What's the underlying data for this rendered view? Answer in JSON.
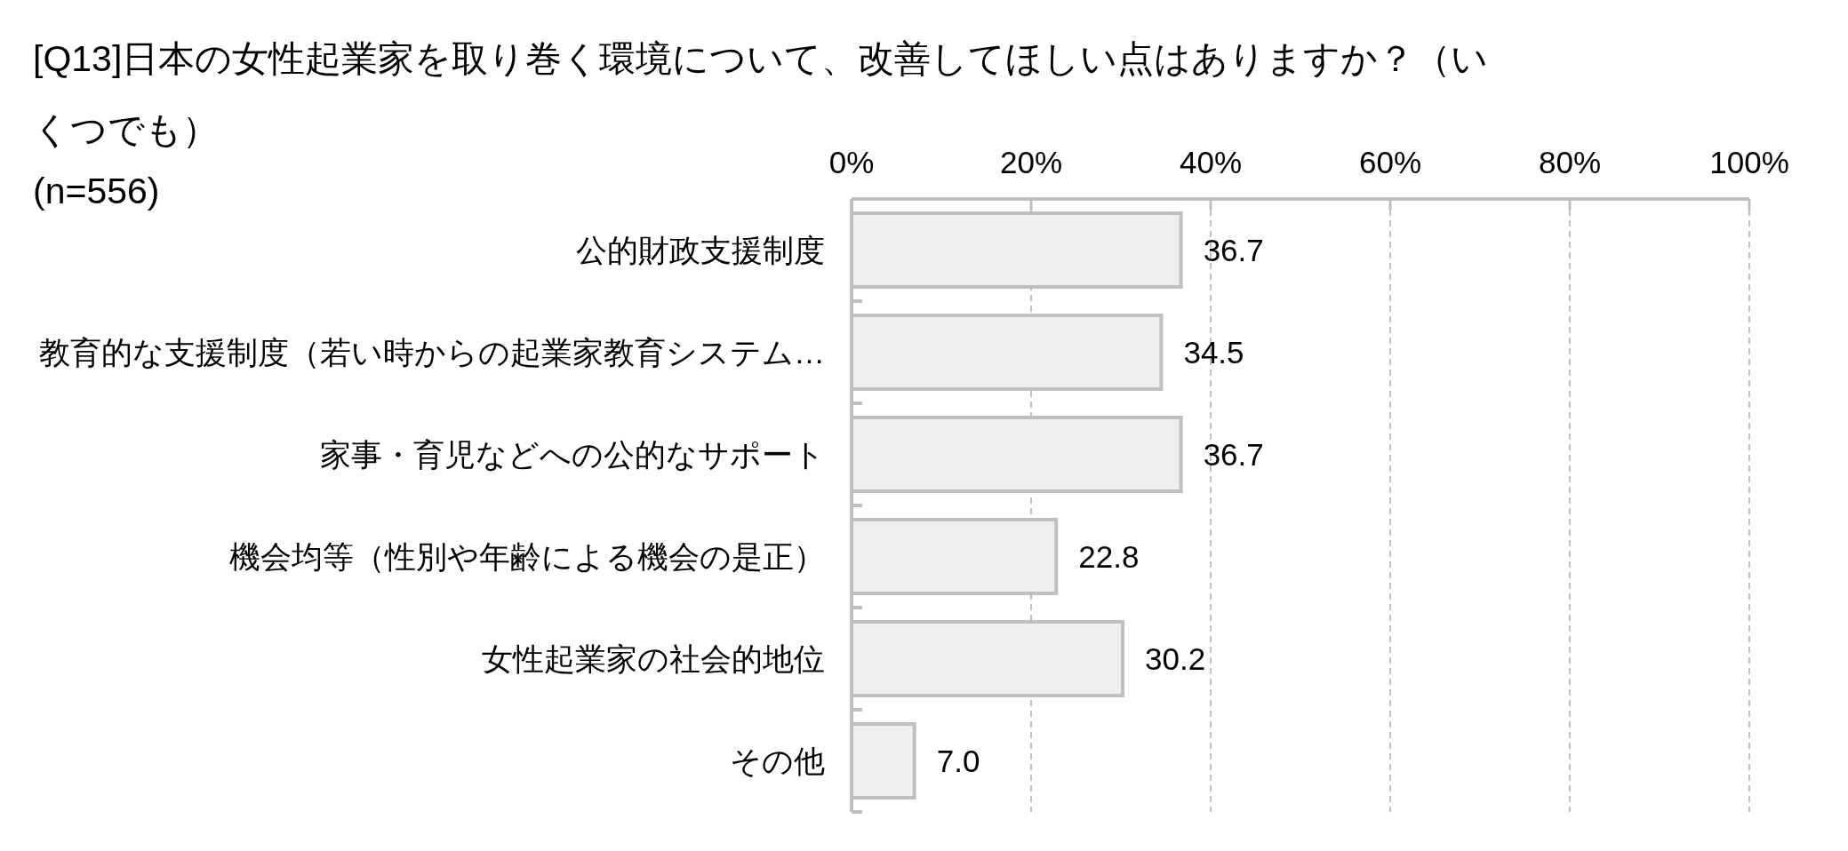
{
  "chart_data": {
    "type": "bar",
    "orientation": "horizontal",
    "title": "[Q13]日本の女性起業家を取り巻く環境について、改善してほしい点はありますか？（いくつでも）",
    "subtitle": "(n=556)",
    "categories": [
      "公的財政支援制度",
      "教育的な支援制度（若い時からの起業家教育システム…",
      "家事・育児などへの公的なサポート",
      "機会均等（性別や年齢による機会の是正）",
      "女性起業家の社会的地位",
      "その他"
    ],
    "values": [
      36.7,
      34.5,
      36.7,
      22.8,
      30.2,
      7.0
    ],
    "value_labels": [
      "36.7",
      "34.5",
      "36.7",
      "22.8",
      "30.2",
      "7.0"
    ],
    "color": "#efefef",
    "xlim": [
      0,
      100
    ],
    "xticks": [
      {
        "value": 0,
        "label": "0%"
      },
      {
        "value": 20,
        "label": "20%"
      },
      {
        "value": 40,
        "label": "40%"
      },
      {
        "value": 60,
        "label": "60%"
      },
      {
        "value": 80,
        "label": "80%"
      },
      {
        "value": 100,
        "label": "100%"
      }
    ],
    "grid": "x"
  }
}
